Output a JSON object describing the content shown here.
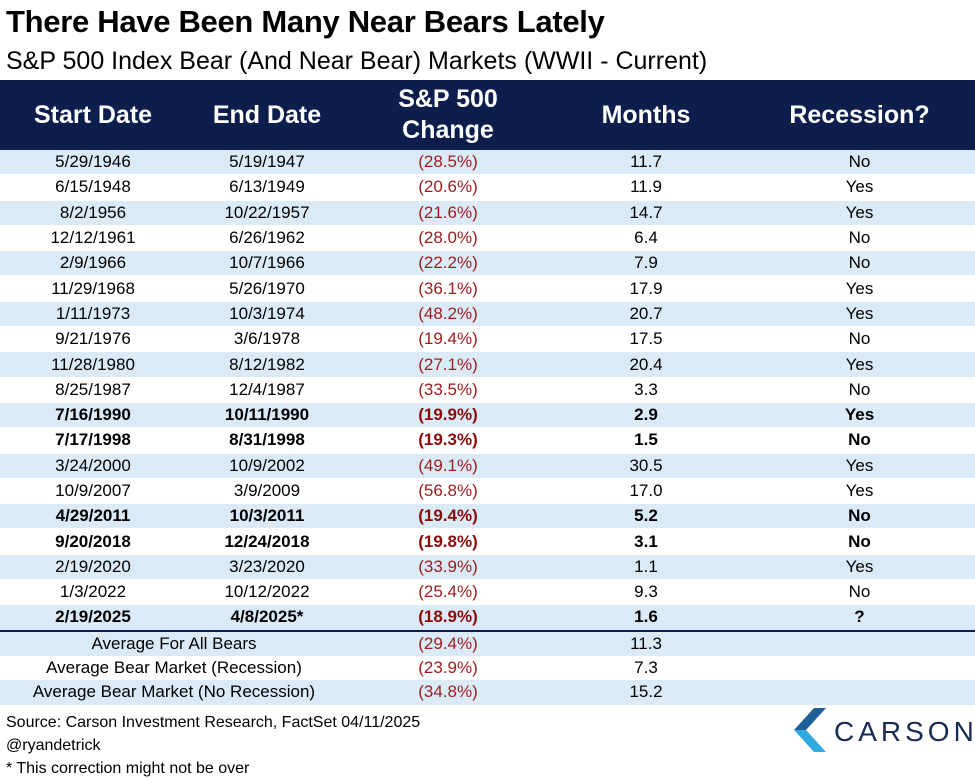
{
  "title": "There Have Been Many Near Bears Lately",
  "subtitle": "S&P 500 Index Bear (And Near Bear) Markets (WWII - Current)",
  "chart_data": {
    "type": "table",
    "columns": [
      "Start Date",
      "End Date",
      "S&P 500 Change",
      "Months",
      "Recession?"
    ],
    "header_lines": {
      "change": [
        "S&P 500",
        "Change"
      ]
    },
    "rows": [
      {
        "start": "5/29/1946",
        "end": "5/19/1947",
        "change": "(28.5%)",
        "months": "11.7",
        "recession": "No",
        "bold": false
      },
      {
        "start": "6/15/1948",
        "end": "6/13/1949",
        "change": "(20.6%)",
        "months": "11.9",
        "recession": "Yes",
        "bold": false
      },
      {
        "start": "8/2/1956",
        "end": "10/22/1957",
        "change": "(21.6%)",
        "months": "14.7",
        "recession": "Yes",
        "bold": false
      },
      {
        "start": "12/12/1961",
        "end": "6/26/1962",
        "change": "(28.0%)",
        "months": "6.4",
        "recession": "No",
        "bold": false
      },
      {
        "start": "2/9/1966",
        "end": "10/7/1966",
        "change": "(22.2%)",
        "months": "7.9",
        "recession": "No",
        "bold": false
      },
      {
        "start": "11/29/1968",
        "end": "5/26/1970",
        "change": "(36.1%)",
        "months": "17.9",
        "recession": "Yes",
        "bold": false
      },
      {
        "start": "1/11/1973",
        "end": "10/3/1974",
        "change": "(48.2%)",
        "months": "20.7",
        "recession": "Yes",
        "bold": false
      },
      {
        "start": "9/21/1976",
        "end": "3/6/1978",
        "change": "(19.4%)",
        "months": "17.5",
        "recession": "No",
        "bold": false
      },
      {
        "start": "11/28/1980",
        "end": "8/12/1982",
        "change": "(27.1%)",
        "months": "20.4",
        "recession": "Yes",
        "bold": false
      },
      {
        "start": "8/25/1987",
        "end": "12/4/1987",
        "change": "(33.5%)",
        "months": "3.3",
        "recession": "No",
        "bold": false
      },
      {
        "start": "7/16/1990",
        "end": "10/11/1990",
        "change": "(19.9%)",
        "months": "2.9",
        "recession": "Yes",
        "bold": true
      },
      {
        "start": "7/17/1998",
        "end": "8/31/1998",
        "change": "(19.3%)",
        "months": "1.5",
        "recession": "No",
        "bold": true
      },
      {
        "start": "3/24/2000",
        "end": "10/9/2002",
        "change": "(49.1%)",
        "months": "30.5",
        "recession": "Yes",
        "bold": false
      },
      {
        "start": "10/9/2007",
        "end": "3/9/2009",
        "change": "(56.8%)",
        "months": "17.0",
        "recession": "Yes",
        "bold": false
      },
      {
        "start": "4/29/2011",
        "end": "10/3/2011",
        "change": "(19.4%)",
        "months": "5.2",
        "recession": "No",
        "bold": true
      },
      {
        "start": "9/20/2018",
        "end": "12/24/2018",
        "change": "(19.8%)",
        "months": "3.1",
        "recession": "No",
        "bold": true
      },
      {
        "start": "2/19/2020",
        "end": "3/23/2020",
        "change": "(33.9%)",
        "months": "1.1",
        "recession": "Yes",
        "bold": false
      },
      {
        "start": "1/3/2022",
        "end": "10/12/2022",
        "change": "(25.4%)",
        "months": "9.3",
        "recession": "No",
        "bold": false
      },
      {
        "start": "2/19/2025",
        "end": "4/8/2025*",
        "change": "(18.9%)",
        "months": "1.6",
        "recession": "?",
        "bold": true
      }
    ],
    "summary": [
      {
        "label": "Average For All Bears",
        "change": "(29.4%)",
        "months": "11.3"
      },
      {
        "label": "Average Bear Market (Recession)",
        "change": "(23.9%)",
        "months": "7.3"
      },
      {
        "label": "Average Bear Market (No Recession)",
        "change": "(34.8%)",
        "months": "15.2"
      }
    ]
  },
  "footer": {
    "source": "Source: Carson Investment Research, FactSet 04/11/2025",
    "handle": "@ryandetrick",
    "note": "* This correction might not be over"
  },
  "logo": {
    "text": "CARSON",
    "icon": "carson-chevron-logo-icon",
    "colors": {
      "dark": "#1f5f96",
      "light": "#33aadf",
      "text": "#1a2b52"
    }
  }
}
